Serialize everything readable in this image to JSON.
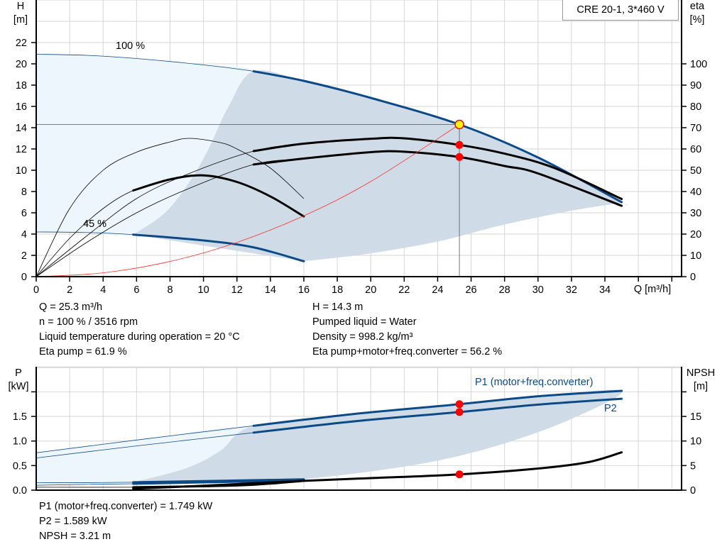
{
  "legend_box": "CRE 20-1, 3*460 V",
  "colors": {
    "curve_blue": "#0c4a87",
    "light_region": "#edf5fd",
    "dark_region": "#cfdbe6",
    "system_curve": "#ff3030",
    "marker_red": "#ff0000",
    "marker_yellow": "#ffff00",
    "grid": "#d6d6d6"
  },
  "chart_data": [
    {
      "type": "line",
      "title": "",
      "xlabel": "Q [m³/h]",
      "ylabel_left": [
        "H",
        "[m]"
      ],
      "ylabel_right": [
        "eta",
        "[%]"
      ],
      "xlim": [
        0,
        38
      ],
      "ylim_left": [
        0,
        26
      ],
      "ylim_right": [
        0,
        130
      ],
      "xticks": [
        0,
        2,
        4,
        6,
        8,
        10,
        12,
        14,
        16,
        18,
        20,
        22,
        24,
        26,
        28,
        30,
        32,
        34
      ],
      "yticks_left": [
        0,
        2,
        4,
        6,
        8,
        10,
        12,
        14,
        16,
        18,
        20,
        22
      ],
      "yticks_right": [
        0,
        10,
        20,
        30,
        40,
        50,
        60,
        70,
        80,
        90,
        100
      ],
      "grid": true,
      "curve_labels": {
        "max_speed": "100 %",
        "min_speed": "45 %"
      },
      "regions": {
        "light": [
          [
            0,
            20.9
          ],
          [
            3,
            20.8
          ],
          [
            6,
            20.5
          ],
          [
            10,
            19.9
          ],
          [
            13,
            19.3
          ],
          [
            11.5,
            16
          ],
          [
            10.3,
            12
          ],
          [
            9.2,
            9
          ],
          [
            7.7,
            6
          ],
          [
            5.8,
            3.95
          ],
          [
            3,
            4.15
          ],
          [
            0,
            4.2
          ]
        ],
        "dark": [
          [
            5.8,
            3.95
          ],
          [
            7.7,
            6
          ],
          [
            9.2,
            9
          ],
          [
            10.3,
            12
          ],
          [
            11.5,
            16
          ],
          [
            13,
            19.3
          ],
          [
            16,
            18.4
          ],
          [
            20,
            16.8
          ],
          [
            25.3,
            14.3
          ],
          [
            30,
            11.2
          ],
          [
            35,
            7.0
          ],
          [
            34.8,
            6.9
          ],
          [
            32,
            6.2
          ],
          [
            28,
            4.9
          ],
          [
            24,
            3.3
          ],
          [
            19.6,
            2.1
          ],
          [
            16,
            1.45
          ]
        ]
      },
      "series": [
        {
          "id": "H_100",
          "axis": "left",
          "color": "#0c4a87",
          "thick_range": [
            13,
            35
          ],
          "points": [
            [
              0,
              20.9
            ],
            [
              3,
              20.8
            ],
            [
              6,
              20.5
            ],
            [
              10,
              19.9
            ],
            [
              13,
              19.3
            ],
            [
              16,
              18.4
            ],
            [
              20,
              16.8
            ],
            [
              25.3,
              14.3
            ],
            [
              30,
              11.2
            ],
            [
              35,
              7.0
            ]
          ]
        },
        {
          "id": "H_45",
          "axis": "left",
          "color": "#0c4a87",
          "thick_range": [
            5.8,
            16
          ],
          "points": [
            [
              0,
              4.2
            ],
            [
              3,
              4.15
            ],
            [
              5.8,
              3.95
            ],
            [
              10,
              3.4
            ],
            [
              13,
              2.75
            ],
            [
              16,
              1.45
            ]
          ]
        },
        {
          "id": "eta_pump_100",
          "axis": "right",
          "color": "#000000",
          "thick_range": [
            13,
            35
          ],
          "points": [
            [
              0,
              0
            ],
            [
              3,
              19
            ],
            [
              6,
              36.7
            ],
            [
              9,
              48
            ],
            [
              13,
              59
            ],
            [
              16,
              62.5
            ],
            [
              20,
              64.8
            ],
            [
              22,
              65
            ],
            [
              25.3,
              61.9
            ],
            [
              28,
              57.8
            ],
            [
              31,
              51
            ],
            [
              35,
              36.5
            ]
          ]
        },
        {
          "id": "eta_total_100",
          "axis": "right",
          "color": "#000000",
          "thick_range": [
            13,
            35
          ],
          "points": [
            [
              0,
              0
            ],
            [
              3,
              16
            ],
            [
              6,
              30
            ],
            [
              9,
              41
            ],
            [
              13,
              52.7
            ],
            [
              16,
              55.5
            ],
            [
              20,
              58.5
            ],
            [
              22,
              58.7
            ],
            [
              25.3,
              56.2
            ],
            [
              28,
              52
            ],
            [
              30,
              48.5
            ],
            [
              35,
              33.3
            ]
          ]
        },
        {
          "id": "eta_pump_45",
          "axis": "right",
          "color": "#000000",
          "thick_range": null,
          "points": [
            [
              0,
              0
            ],
            [
              2,
              32
            ],
            [
              4,
              50
            ],
            [
              6,
              58.5
            ],
            [
              8,
              63.3
            ],
            [
              9.2,
              65
            ],
            [
              11,
              63
            ],
            [
              12,
              60
            ],
            [
              14,
              51
            ],
            [
              16,
              36.7
            ]
          ]
        },
        {
          "id": "eta_total_45",
          "axis": "right",
          "color": "#000000",
          "thick_range": [
            5.8,
            16
          ],
          "points": [
            [
              0,
              0
            ],
            [
              2,
              18
            ],
            [
              4,
              32
            ],
            [
              5.8,
              40.5
            ],
            [
              8,
              45.7
            ],
            [
              10,
              47.6
            ],
            [
              12,
              44.5
            ],
            [
              14,
              37.7
            ],
            [
              16,
              28.3
            ]
          ]
        },
        {
          "id": "system_curve",
          "axis": "left",
          "color": "#ff3030",
          "thick_range": null,
          "points": [
            [
              0,
              0
            ],
            [
              4,
              0.36
            ],
            [
              8,
              1.43
            ],
            [
              12,
              3.22
            ],
            [
              16,
              5.72
            ],
            [
              20,
              8.94
            ],
            [
              25.3,
              14.3
            ]
          ]
        }
      ],
      "operating_point": {
        "Q": 25.3,
        "H": 14.3,
        "eta_pump": 61.9,
        "eta_total": 56.2
      }
    },
    {
      "type": "line",
      "title": "",
      "xlim": [
        0,
        38
      ],
      "ylabel_left": [
        "P",
        "[kW]"
      ],
      "ylabel_right": [
        "NPSH",
        "[m]"
      ],
      "ylim_left": [
        0,
        2.5
      ],
      "ylim_right": [
        0,
        25
      ],
      "yticks_left": [
        "0.0",
        "0.5",
        "1.0",
        "1.5",
        ""
      ],
      "yticks_right": [
        "0",
        "5",
        "10",
        "15",
        ""
      ],
      "grid": true,
      "series_labels": {
        "P1": "P1 (motor+freq.converter)",
        "P2": "P2"
      },
      "regions": {
        "light": [
          [
            0,
            0.76
          ],
          [
            6,
            1.02
          ],
          [
            13,
            1.31
          ],
          [
            11,
            0.8
          ],
          [
            9,
            0.45
          ],
          [
            5.8,
            0.16
          ],
          [
            0,
            0.13
          ]
        ],
        "dark": [
          [
            5.8,
            0.16
          ],
          [
            9,
            0.45
          ],
          [
            11,
            0.8
          ],
          [
            13,
            1.31
          ],
          [
            19,
            1.55
          ],
          [
            25.3,
            1.749
          ],
          [
            30,
            1.91
          ],
          [
            35,
            2.02
          ],
          [
            32,
            1.45
          ],
          [
            28,
            0.95
          ],
          [
            24,
            0.6
          ],
          [
            20,
            0.38
          ],
          [
            16,
            0.22
          ]
        ]
      },
      "series": [
        {
          "id": "P1_100",
          "axis": "left",
          "color": "#0c4a87",
          "thick_range": [
            13,
            35
          ],
          "points": [
            [
              0,
              0.76
            ],
            [
              6,
              1.02
            ],
            [
              13,
              1.31
            ],
            [
              19,
              1.55
            ],
            [
              25.3,
              1.749
            ],
            [
              30,
              1.91
            ],
            [
              35,
              2.02
            ]
          ]
        },
        {
          "id": "P2_100",
          "axis": "left",
          "color": "#0c4a87",
          "thick_range": [
            13,
            35
          ],
          "points": [
            [
              0,
              0.655
            ],
            [
              6,
              0.9
            ],
            [
              13,
              1.17
            ],
            [
              19,
              1.4
            ],
            [
              25.3,
              1.589
            ],
            [
              30,
              1.74
            ],
            [
              35,
              1.86
            ]
          ]
        },
        {
          "id": "P1_45",
          "axis": "left",
          "color": "#0c4a87",
          "thick_range": [
            5.8,
            16
          ],
          "points": [
            [
              0,
              0.15
            ],
            [
              5.8,
              0.16
            ],
            [
              16,
              0.22
            ]
          ]
        },
        {
          "id": "P2_45",
          "axis": "left",
          "color": "#0c4a87",
          "thick_range": [
            5.8,
            16
          ],
          "points": [
            [
              0,
              0.1
            ],
            [
              5.8,
              0.13
            ],
            [
              16,
              0.2
            ]
          ]
        },
        {
          "id": "NPSH_45",
          "axis": "right",
          "color": "#000000",
          "thick_range": [
            5.8,
            16
          ],
          "points": [
            [
              0,
              0.6
            ],
            [
              5.8,
              0.6
            ],
            [
              10,
              0.8
            ],
            [
              13,
              1.1
            ],
            [
              16,
              1.9
            ]
          ]
        },
        {
          "id": "NPSH_100",
          "axis": "right",
          "color": "#000000",
          "thick_range": [
            5.8,
            35
          ],
          "points": [
            [
              5.8,
              0.3
            ],
            [
              10,
              0.9
            ],
            [
              13,
              1.4
            ],
            [
              16,
              1.9
            ],
            [
              20,
              2.45
            ],
            [
              25.3,
              3.21
            ],
            [
              30,
              4.4
            ],
            [
              33,
              5.7
            ],
            [
              35,
              7.7
            ]
          ]
        }
      ],
      "operating_point": {
        "Q": 25.3,
        "P1": 1.749,
        "P2": 1.589,
        "NPSH": 3.21
      }
    }
  ],
  "results": {
    "left": [
      "Q = 25.3 m³/h",
      "n = 100 % / 3516 rpm",
      "Liquid temperature during operation = 20 °C",
      "Eta pump = 61.9 %"
    ],
    "right": [
      "H = 14.3 m",
      "Pumped liquid = Water",
      "Density = 998.2 kg/m³",
      "Eta pump+motor+freq.converter = 56.2 %"
    ],
    "power": [
      "P1 (motor+freq.converter) = 1.749 kW",
      "P2 = 1.589 kW",
      "NPSH = 3.21 m"
    ]
  }
}
